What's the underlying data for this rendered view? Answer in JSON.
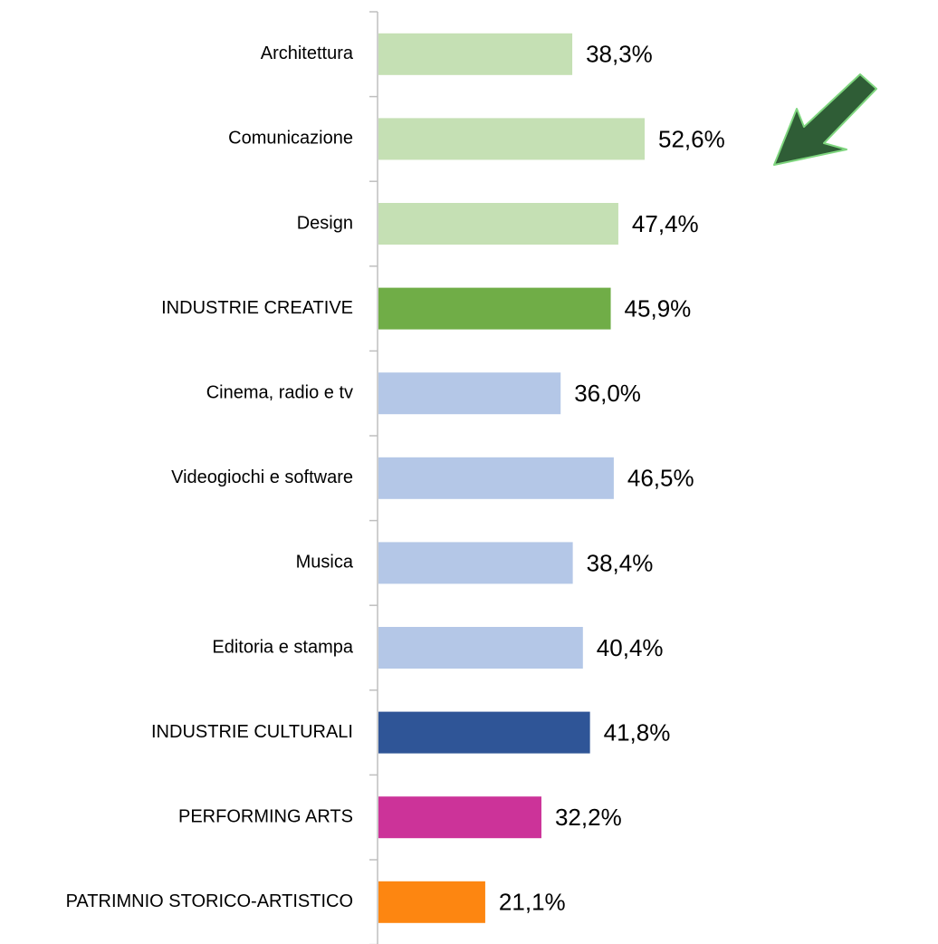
{
  "chart_data": {
    "type": "bar",
    "orientation": "horizontal",
    "categories": [
      "Architettura",
      "Comunicazione",
      "Design",
      "INDUSTRIE CREATIVE",
      "Cinema, radio e tv",
      "Videogiochi e software",
      "Musica",
      "Editoria e stampa",
      "INDUSTRIE CULTURALI",
      "PERFORMING ARTS",
      "PATRIMNIO STORICO-ARTISTICO"
    ],
    "values": [
      38.3,
      52.6,
      47.4,
      45.9,
      36.0,
      46.5,
      38.4,
      40.4,
      41.8,
      32.2,
      21.1
    ],
    "value_labels": [
      "38,3%",
      "52,6%",
      "47,4%",
      "45,9%",
      "36,0%",
      "46,5%",
      "38,4%",
      "40,4%",
      "41,8%",
      "32,2%",
      "21,1%"
    ],
    "colors": [
      "#c5e0b4",
      "#c5e0b4",
      "#c5e0b4",
      "#70ad47",
      "#b4c7e7",
      "#b4c7e7",
      "#b4c7e7",
      "#b4c7e7",
      "#2f5597",
      "#cc3399",
      "#fd8611"
    ]
  }
}
